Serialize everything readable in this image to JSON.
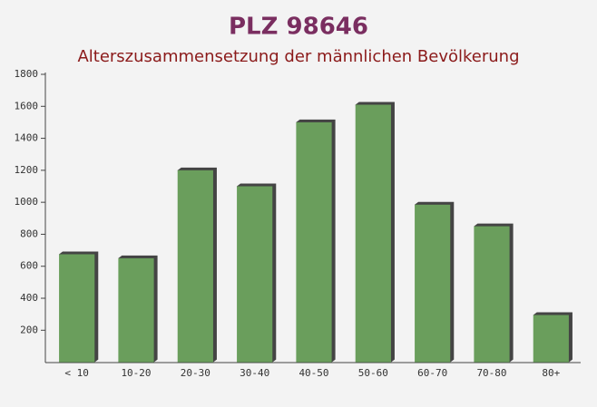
{
  "chart_data": {
    "type": "bar",
    "title": "PLZ 98646",
    "subtitle": "Alterszusammensetzung der männlichen Bevölkerung",
    "categories": [
      "< 10",
      "10-20",
      "20-30",
      "30-40",
      "40-50",
      "50-60",
      "60-70",
      "70-80",
      "80+"
    ],
    "values": [
      675,
      650,
      1200,
      1100,
      1500,
      1610,
      985,
      850,
      295
    ],
    "color": "#6a9e5c",
    "ylim": [
      0,
      1800
    ],
    "yticks": [
      200,
      400,
      600,
      800,
      1000,
      1200,
      1400,
      1600,
      1800
    ]
  }
}
